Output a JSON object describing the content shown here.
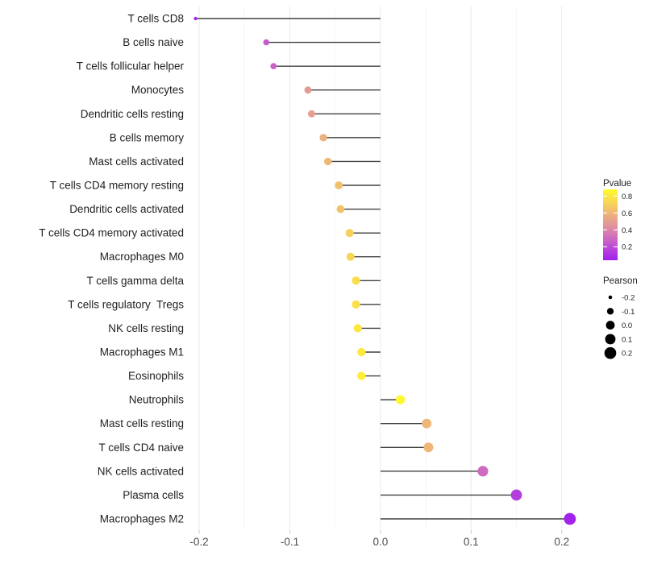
{
  "chart_data": {
    "type": "lollipop",
    "title": "",
    "xlabel": "",
    "ylabel": "",
    "x_tick_labels": [
      "-0.2",
      "-0.1",
      "0.0",
      "0.1",
      "0.2"
    ],
    "x_tick_values": [
      -0.2,
      -0.1,
      0.0,
      0.1,
      0.2
    ],
    "x_minor_values": [
      -0.15,
      -0.05,
      0.05,
      0.15
    ],
    "xlim": [
      -0.2125,
      0.2225
    ],
    "grid": "on",
    "rows": [
      {
        "category": "T cells CD8",
        "pearson": -0.204,
        "pvalue": 0.05
      },
      {
        "category": "B cells naive",
        "pearson": -0.126,
        "pvalue": 0.25
      },
      {
        "category": "T cells follicular helper",
        "pearson": -0.118,
        "pvalue": 0.27
      },
      {
        "category": "Monocytes",
        "pearson": -0.08,
        "pvalue": 0.48
      },
      {
        "category": "Dendritic cells resting",
        "pearson": -0.076,
        "pvalue": 0.5
      },
      {
        "category": "B cells memory",
        "pearson": -0.063,
        "pvalue": 0.58
      },
      {
        "category": "Mast cells activated",
        "pearson": -0.058,
        "pvalue": 0.6
      },
      {
        "category": "T cells CD4 memory resting",
        "pearson": -0.046,
        "pvalue": 0.64
      },
      {
        "category": "Dendritic cells activated",
        "pearson": -0.044,
        "pvalue": 0.65
      },
      {
        "category": "T cells CD4 memory activated",
        "pearson": -0.034,
        "pvalue": 0.7
      },
      {
        "category": "Macrophages M0",
        "pearson": -0.033,
        "pvalue": 0.72
      },
      {
        "category": "T cells gamma delta",
        "pearson": -0.027,
        "pvalue": 0.76
      },
      {
        "category": "T cells regulatory  Tregs",
        "pearson": -0.027,
        "pvalue": 0.77
      },
      {
        "category": "NK cells resting",
        "pearson": -0.025,
        "pvalue": 0.79
      },
      {
        "category": "Macrophages M1",
        "pearson": -0.021,
        "pvalue": 0.81
      },
      {
        "category": "Eosinophils",
        "pearson": -0.021,
        "pvalue": 0.83
      },
      {
        "category": "Neutrophils",
        "pearson": 0.022,
        "pvalue": 0.86
      },
      {
        "category": "Mast cells resting",
        "pearson": 0.051,
        "pvalue": 0.6
      },
      {
        "category": "T cells CD4 naive",
        "pearson": 0.053,
        "pvalue": 0.6
      },
      {
        "category": "NK cells activated",
        "pearson": 0.113,
        "pvalue": 0.3
      },
      {
        "category": "Plasma cells",
        "pearson": 0.15,
        "pvalue": 0.15
      },
      {
        "category": "Macrophages M2",
        "pearson": 0.209,
        "pvalue": 0.05
      }
    ],
    "legends": {
      "pvalue": {
        "title": "Pvalue",
        "tick_labels": [
          "0.8",
          "0.6",
          "0.4",
          "0.2"
        ],
        "tick_values": [
          0.8,
          0.6,
          0.4,
          0.2
        ],
        "domain": [
          0.04,
          0.88
        ],
        "gradient_stops": [
          {
            "p": 0.04,
            "color": "#A020EC"
          },
          {
            "p": 0.15,
            "color": "#B43DDE"
          },
          {
            "p": 0.25,
            "color": "#C65BCB"
          },
          {
            "p": 0.35,
            "color": "#D678B4"
          },
          {
            "p": 0.45,
            "color": "#E2949B"
          },
          {
            "p": 0.55,
            "color": "#EAA985"
          },
          {
            "p": 0.65,
            "color": "#F2C368"
          },
          {
            "p": 0.75,
            "color": "#F9DC4F"
          },
          {
            "p": 0.85,
            "color": "#FEF433"
          },
          {
            "p": 0.88,
            "color": "#FFFF2A"
          }
        ]
      },
      "pearson": {
        "title": "Pearson",
        "labels": [
          "-0.2",
          "-0.1",
          "0.0",
          "0.1",
          "0.2"
        ],
        "values": [
          -0.2,
          -0.1,
          0.0,
          0.1,
          0.2
        ],
        "dot_color": "#000000"
      }
    },
    "colors": {
      "stem": "#404040",
      "grid_major": "#ebebeb",
      "grid_minor": "#f6f6f6",
      "axis_tick": "#c9c9c9",
      "axis_text": "#4d4d4d",
      "category_text": "#1f1f1f",
      "legend_text": "#1f1f1f",
      "background": "#ffffff"
    }
  }
}
